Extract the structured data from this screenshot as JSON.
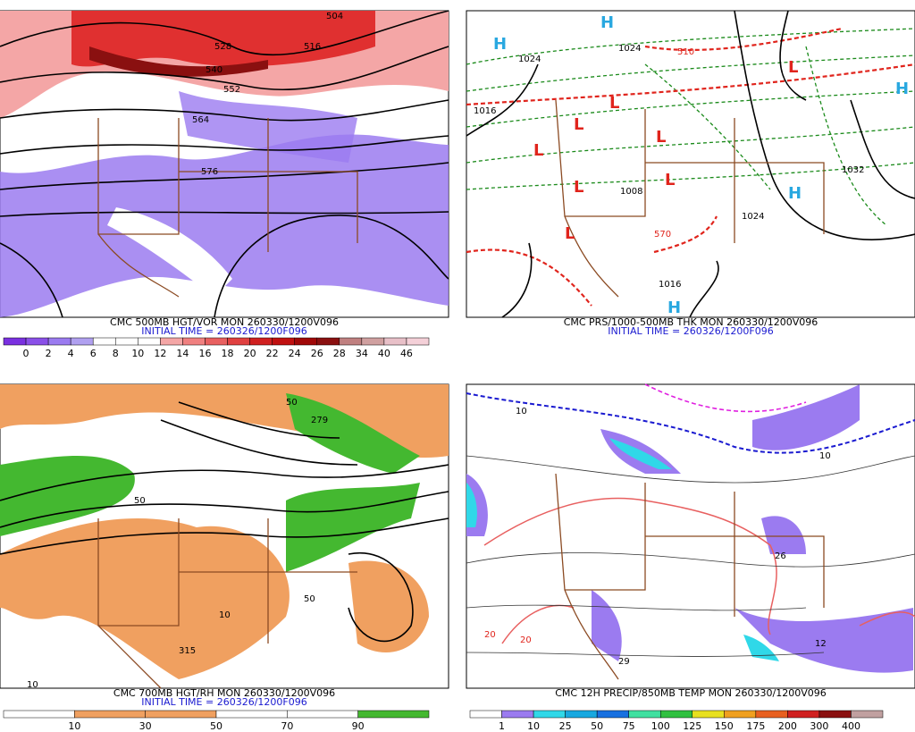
{
  "panels": [
    {
      "title": "CMC 500MB HGT/VOR MON 260330/1200V096",
      "initial_time": "INITIAL TIME = 260326/1200F096",
      "legend_labels": [
        "0",
        "2",
        "4",
        "6",
        "8",
        "10",
        "12",
        "14",
        "16",
        "18",
        "20",
        "22",
        "24",
        "26",
        "28",
        "34",
        "40",
        "46"
      ],
      "map_labels": [
        "504",
        "516",
        "528",
        "540",
        "552",
        "564",
        "576"
      ]
    },
    {
      "title": "CMC PRS/1000-500MB THK MON 260330/1200V096",
      "initial_time": "INITIAL TIME = 260326/1200F096",
      "legend_labels": [],
      "map_labels": [
        "H",
        "L",
        "1024",
        "1016",
        "1008",
        "1032",
        "510",
        "570"
      ]
    },
    {
      "title": "CMC 700MB HGT/RH MON 260330/1200V096",
      "initial_time": "INITIAL TIME = 260326/1200F096",
      "legend_labels": [
        "10",
        "30",
        "50",
        "70",
        "90"
      ],
      "map_labels": [
        "50",
        "10",
        "315",
        "279"
      ]
    },
    {
      "title": "CMC 12H PRECIP/850MB TEMP MON 260330/1200V096",
      "initial_time": "",
      "legend_labels": [
        "1",
        "10",
        "25",
        "50",
        "75",
        "100",
        "125",
        "150",
        "175",
        "200",
        "300",
        "400"
      ],
      "map_labels": [
        "10",
        "20",
        "29",
        "26",
        "12"
      ]
    }
  ]
}
